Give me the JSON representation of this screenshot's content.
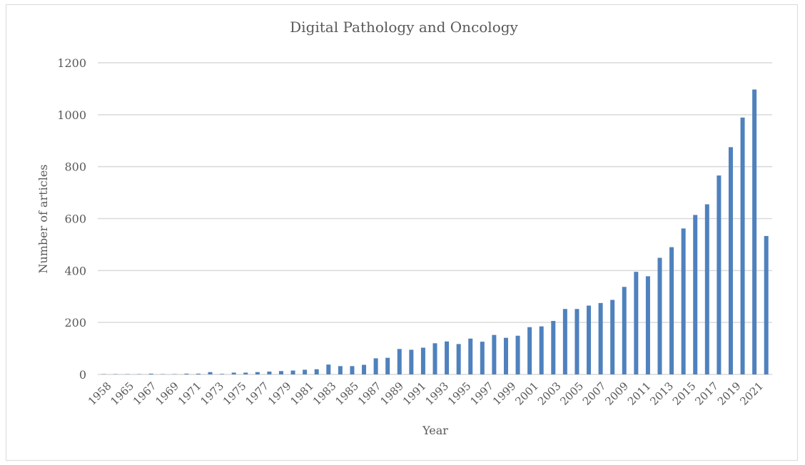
{
  "chart_data": {
    "type": "bar",
    "title": "Digital Pathology and Oncology",
    "xlabel": "Year",
    "ylabel": "Number of articles",
    "ylim": [
      0,
      1200
    ],
    "yticks": [
      0,
      200,
      400,
      600,
      800,
      1000,
      1200
    ],
    "grid": true,
    "bar_color": "#4f81bd",
    "categories": [
      "1958",
      "1965",
      "1967",
      "1969",
      "1970",
      "1971",
      "1972",
      "1973",
      "1974",
      "1975",
      "1976",
      "1977",
      "1978",
      "1979",
      "1980",
      "1981",
      "1982",
      "1983",
      "1984",
      "1985",
      "1986",
      "1987",
      "1988",
      "1989",
      "1990",
      "1991",
      "1992",
      "1993",
      "1994",
      "1995",
      "1996",
      "1997",
      "1998",
      "1999",
      "2000",
      "2001",
      "2002",
      "2003",
      "2004",
      "2005",
      "2006",
      "2007",
      "2008",
      "2009",
      "2010",
      "2011",
      "2012",
      "2013",
      "2014",
      "2015",
      "2016",
      "2017",
      "2018",
      "2019",
      "2020",
      "2021",
      "2022"
    ],
    "x_tick_labels": [
      "1958",
      "1965",
      "1967",
      "1969",
      "1971",
      "1973",
      "1975",
      "1977",
      "1979",
      "1981",
      "1983",
      "1985",
      "1987",
      "1989",
      "1991",
      "1993",
      "1995",
      "1997",
      "1999",
      "2001",
      "2003",
      "2005",
      "2007",
      "2009",
      "2011",
      "2013",
      "2015",
      "2017",
      "2019",
      "2021"
    ],
    "values": [
      1,
      1,
      1,
      1,
      3,
      1,
      1,
      3,
      3,
      9,
      2,
      7,
      7,
      9,
      11,
      13,
      15,
      18,
      20,
      38,
      32,
      32,
      37,
      62,
      64,
      98,
      95,
      103,
      120,
      127,
      117,
      138,
      126,
      152,
      141,
      149,
      182,
      185,
      206,
      252,
      252,
      265,
      275,
      287,
      337,
      395,
      378,
      449,
      490,
      562,
      614,
      655,
      766,
      875,
      989,
      1097,
      533
    ]
  }
}
